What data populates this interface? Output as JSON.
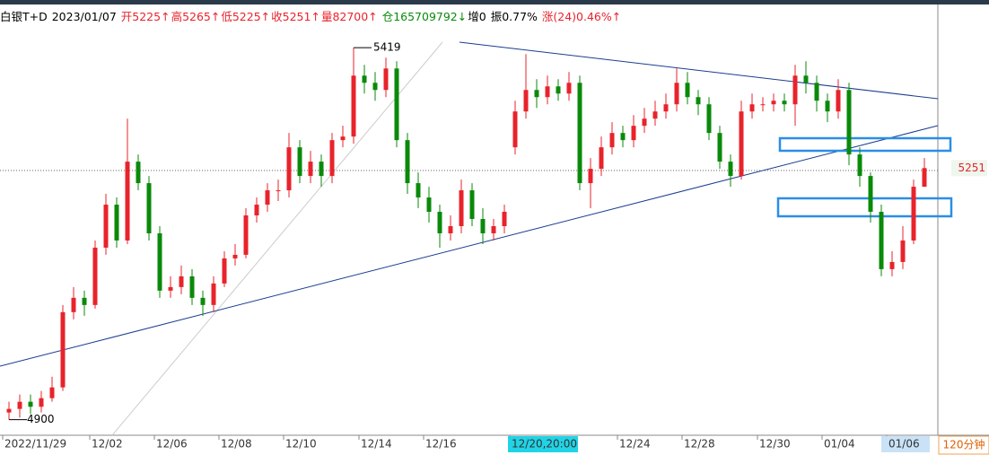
{
  "header": {
    "name": "白银T+D",
    "date": "2023/01/07",
    "open": "开5225↑",
    "high": "高5265↑",
    "low": "低5225↑",
    "close": "收5251↑",
    "volume": "量82700↑",
    "position": "仓165709792↓",
    "change_pos": "增0",
    "amplitude": "振0.77%",
    "change": "涨(24)0.46%↑"
  },
  "chart_data": {
    "type": "candlestick",
    "period": "120分钟",
    "categories": [
      "2022/11/29",
      null,
      null,
      null,
      null,
      null,
      null,
      null,
      "12/02",
      null,
      null,
      null,
      null,
      null,
      "12/06",
      null,
      null,
      null,
      null,
      null,
      "12/08",
      null,
      null,
      null,
      null,
      null,
      "12/10",
      null,
      null,
      null,
      null,
      null,
      null,
      "12/14",
      null,
      null,
      null,
      null,
      null,
      "12/16",
      null,
      null,
      null,
      null,
      null,
      null,
      null,
      "12/20,20:00",
      null,
      null,
      null,
      null,
      null,
      null,
      null,
      null,
      null,
      "12/24",
      null,
      null,
      null,
      null,
      null,
      "12/28",
      null,
      null,
      null,
      null,
      null,
      null,
      "12/30",
      null,
      null,
      null,
      null,
      null,
      "01/04",
      null,
      null,
      null,
      null,
      null,
      "01/06",
      null,
      null,
      null
    ],
    "open": [
      4910,
      4915,
      4925,
      4918,
      4930,
      4945,
      5050,
      5070,
      5060,
      5140,
      5200,
      5150,
      5260,
      5230,
      5160,
      5080,
      5085,
      5100,
      5070,
      5060,
      5090,
      5125,
      5130,
      5185,
      5200,
      5220,
      5220,
      5280,
      5240,
      5260,
      5240,
      5290,
      5295,
      5380,
      5370,
      5360,
      5390,
      5290,
      5230,
      5210,
      5190,
      5160,
      5170,
      5220,
      5180,
      5160,
      5170,
      5280,
      5330,
      5360,
      5350,
      5365,
      5355,
      5370,
      5230,
      5250,
      5280,
      5300,
      5290,
      5310,
      5320,
      5330,
      5340,
      5370,
      5350,
      5340,
      5300,
      5260,
      5240,
      5330,
      5340,
      5340,
      5345,
      5340,
      5380,
      5370,
      5345,
      5330,
      5360,
      5270,
      5240,
      5190,
      5110,
      5120,
      5150,
      5225
    ],
    "high": [
      4925,
      4935,
      4935,
      4940,
      4960,
      5060,
      5085,
      5080,
      5150,
      5215,
      5210,
      5320,
      5270,
      5240,
      5170,
      5100,
      5115,
      5110,
      5080,
      5100,
      5135,
      5145,
      5195,
      5210,
      5230,
      5235,
      5300,
      5290,
      5275,
      5270,
      5300,
      5310,
      5419,
      5395,
      5385,
      5405,
      5400,
      5300,
      5245,
      5225,
      5200,
      5185,
      5235,
      5230,
      5195,
      5180,
      5200,
      5345,
      5410,
      5375,
      5380,
      5375,
      5385,
      5380,
      5265,
      5295,
      5315,
      5310,
      5325,
      5335,
      5345,
      5355,
      5390,
      5385,
      5360,
      5350,
      5310,
      5270,
      5345,
      5355,
      5350,
      5355,
      5355,
      5395,
      5400,
      5380,
      5355,
      5375,
      5370,
      5280,
      5245,
      5200,
      5135,
      5170,
      5235,
      5265
    ],
    "low": [
      4900,
      4903,
      4908,
      4910,
      4925,
      4940,
      5040,
      5045,
      5055,
      5130,
      5140,
      5145,
      5220,
      5150,
      5070,
      5070,
      5075,
      5060,
      5045,
      5050,
      5085,
      5115,
      5125,
      5175,
      5190,
      5205,
      5210,
      5230,
      5230,
      5225,
      5230,
      5280,
      5285,
      5355,
      5345,
      5350,
      5280,
      5215,
      5195,
      5175,
      5140,
      5150,
      5160,
      5170,
      5145,
      5150,
      5160,
      5270,
      5320,
      5335,
      5340,
      5345,
      5345,
      5220,
      5195,
      5240,
      5270,
      5280,
      5280,
      5300,
      5310,
      5320,
      5330,
      5340,
      5325,
      5290,
      5250,
      5225,
      5235,
      5320,
      5330,
      5330,
      5330,
      5310,
      5355,
      5330,
      5315,
      5320,
      5255,
      5225,
      5175,
      5100,
      5100,
      5110,
      5145,
      5225
    ],
    "close": [
      4915,
      4925,
      4918,
      4930,
      4945,
      5050,
      5070,
      5060,
      5140,
      5200,
      5150,
      5260,
      5230,
      5160,
      5080,
      5085,
      5100,
      5070,
      5060,
      5090,
      5125,
      5130,
      5185,
      5200,
      5220,
      5220,
      5280,
      5240,
      5260,
      5240,
      5290,
      5295,
      5380,
      5370,
      5360,
      5390,
      5290,
      5230,
      5210,
      5190,
      5160,
      5170,
      5220,
      5180,
      5160,
      5170,
      5190,
      5330,
      5360,
      5350,
      5365,
      5355,
      5370,
      5230,
      5250,
      5280,
      5300,
      5290,
      5310,
      5320,
      5330,
      5340,
      5370,
      5350,
      5340,
      5300,
      5260,
      5240,
      5330,
      5340,
      5340,
      5345,
      5340,
      5380,
      5370,
      5345,
      5330,
      5360,
      5270,
      5240,
      5190,
      5110,
      5120,
      5150,
      5225,
      5251
    ],
    "up_color": "#e8232b",
    "down_color": "#0a8a0a",
    "ylim": [
      4882,
      5473
    ]
  }
}
